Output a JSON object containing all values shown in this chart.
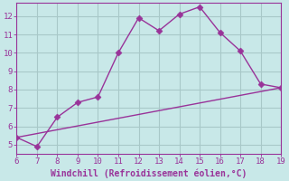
{
  "xlabel": "Windchill (Refroidissement éolien,°C)",
  "line1_x": [
    6,
    7,
    8,
    9,
    10,
    11,
    12,
    13,
    14,
    15,
    16,
    17,
    18,
    19
  ],
  "line1_y": [
    5.4,
    4.9,
    6.5,
    7.3,
    7.6,
    10.0,
    11.9,
    11.2,
    12.1,
    12.5,
    11.1,
    10.1,
    8.3,
    8.1
  ],
  "line2_x": [
    6,
    19
  ],
  "line2_y": [
    5.4,
    8.1
  ],
  "line_color": "#993399",
  "bg_color": "#c8e8e8",
  "grid_color": "#a8c8c8",
  "axis_color": "#993399",
  "xlim": [
    6,
    19
  ],
  "ylim": [
    4.5,
    12.7
  ],
  "xticks": [
    6,
    7,
    8,
    9,
    10,
    11,
    12,
    13,
    14,
    15,
    16,
    17,
    18,
    19
  ],
  "yticks": [
    5,
    6,
    7,
    8,
    9,
    10,
    11,
    12
  ],
  "markersize": 3.5,
  "linewidth": 1.0,
  "tick_fontsize": 6.5,
  "xlabel_fontsize": 7.0
}
